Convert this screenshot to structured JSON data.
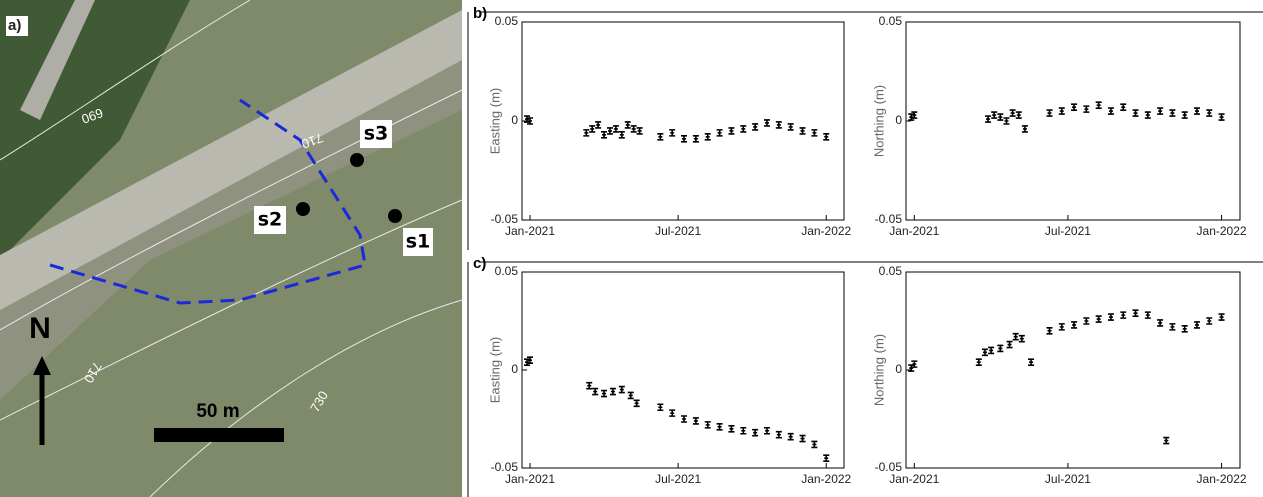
{
  "map": {
    "panel": "a)",
    "sites": [
      "s1",
      "s2",
      "s3"
    ],
    "north": "N",
    "scale": "50 m",
    "contours": [
      "690",
      "710",
      "710",
      "730"
    ]
  },
  "chart_data": [
    {
      "type": "scatter",
      "panel": "b)",
      "y_label": "Easting (m)",
      "color": "#000000",
      "x": [
        2020.99,
        2021.0,
        2021.19,
        2021.21,
        2021.23,
        2021.25,
        2021.27,
        2021.29,
        2021.31,
        2021.33,
        2021.35,
        2021.37,
        2021.44,
        2021.48,
        2021.52,
        2021.56,
        2021.6,
        2021.64,
        2021.68,
        2021.72,
        2021.76,
        2021.8,
        2021.84,
        2021.88,
        2021.92,
        2021.96,
        2022.0
      ],
      "values": [
        0.001,
        0.0,
        -0.006,
        -0.004,
        -0.002,
        -0.007,
        -0.005,
        -0.004,
        -0.007,
        -0.002,
        -0.004,
        -0.005,
        -0.008,
        -0.006,
        -0.009,
        -0.009,
        -0.008,
        -0.006,
        -0.005,
        -0.004,
        -0.003,
        -0.001,
        -0.002,
        -0.003,
        -0.005,
        -0.006,
        -0.008
      ],
      "xlim": [
        2020.973,
        2022.06
      ],
      "ylim": [
        -0.05,
        0.05
      ],
      "yticks": [
        -0.05,
        0,
        0.05
      ],
      "xticks": [
        {
          "value": 2021.0,
          "label": "Jan-2021"
        },
        {
          "value": 2021.5,
          "label": "Jul-2021"
        },
        {
          "value": 2022.0,
          "label": "Jan-2022"
        }
      ]
    },
    {
      "type": "scatter",
      "y_label": "Northing (m)",
      "color": "#000000",
      "x": [
        2020.99,
        2021.0,
        2021.24,
        2021.26,
        2021.28,
        2021.3,
        2021.32,
        2021.34,
        2021.36,
        2021.44,
        2021.48,
        2021.52,
        2021.56,
        2021.6,
        2021.64,
        2021.68,
        2021.72,
        2021.76,
        2021.8,
        2021.84,
        2021.88,
        2021.92,
        2021.96,
        2022.0
      ],
      "values": [
        0.002,
        0.003,
        0.001,
        0.003,
        0.002,
        0.0,
        0.004,
        0.003,
        -0.004,
        0.004,
        0.005,
        0.007,
        0.006,
        0.008,
        0.005,
        0.007,
        0.004,
        0.003,
        0.005,
        0.004,
        0.003,
        0.005,
        0.004,
        0.002
      ],
      "xlim": [
        2020.973,
        2022.06
      ],
      "ylim": [
        -0.05,
        0.05
      ],
      "yticks": [
        -0.05,
        0,
        0.05
      ],
      "xticks": [
        {
          "value": 2021.0,
          "label": "Jan-2021"
        },
        {
          "value": 2021.5,
          "label": "Jul-2021"
        },
        {
          "value": 2022.0,
          "label": "Jan-2022"
        }
      ]
    },
    {
      "type": "scatter",
      "panel": "c)",
      "y_label": "Easting (m)",
      "color": "#000000",
      "x": [
        2020.99,
        2021.0,
        2021.2,
        2021.22,
        2021.25,
        2021.28,
        2021.31,
        2021.34,
        2021.36,
        2021.44,
        2021.48,
        2021.52,
        2021.56,
        2021.6,
        2021.64,
        2021.68,
        2021.72,
        2021.76,
        2021.8,
        2021.84,
        2021.88,
        2021.92,
        2021.96,
        2022.0
      ],
      "values": [
        0.004,
        0.005,
        -0.008,
        -0.011,
        -0.012,
        -0.011,
        -0.01,
        -0.013,
        -0.017,
        -0.019,
        -0.022,
        -0.025,
        -0.026,
        -0.028,
        -0.029,
        -0.03,
        -0.031,
        -0.032,
        -0.031,
        -0.033,
        -0.034,
        -0.035,
        -0.038,
        -0.045
      ],
      "xlim": [
        2020.973,
        2022.06
      ],
      "ylim": [
        -0.05,
        0.05
      ],
      "yticks": [
        -0.05,
        0,
        0.05
      ],
      "xticks": [
        {
          "value": 2021.0,
          "label": "Jan-2021"
        },
        {
          "value": 2021.5,
          "label": "Jul-2021"
        },
        {
          "value": 2022.0,
          "label": "Jan-2022"
        }
      ]
    },
    {
      "type": "scatter",
      "y_label": "Northing (m)",
      "color": "#000000",
      "x": [
        2020.99,
        2021.0,
        2021.21,
        2021.23,
        2021.25,
        2021.28,
        2021.31,
        2021.33,
        2021.35,
        2021.38,
        2021.44,
        2021.48,
        2021.52,
        2021.56,
        2021.6,
        2021.64,
        2021.68,
        2021.72,
        2021.76,
        2021.8,
        2021.82,
        2021.84,
        2021.88,
        2021.92,
        2021.96,
        2022.0
      ],
      "values": [
        0.001,
        0.003,
        0.004,
        0.009,
        0.01,
        0.011,
        0.013,
        0.017,
        0.016,
        0.004,
        0.02,
        0.022,
        0.023,
        0.025,
        0.026,
        0.027,
        0.028,
        0.029,
        0.028,
        0.024,
        -0.036,
        0.022,
        0.021,
        0.023,
        0.025,
        0.027
      ],
      "xlim": [
        2020.973,
        2022.06
      ],
      "ylim": [
        -0.05,
        0.05
      ],
      "yticks": [
        -0.05,
        0,
        0.05
      ],
      "xticks": [
        {
          "value": 2021.0,
          "label": "Jan-2021"
        },
        {
          "value": 2021.5,
          "label": "Jul-2021"
        },
        {
          "value": 2022.0,
          "label": "Jan-2022"
        }
      ]
    }
  ]
}
